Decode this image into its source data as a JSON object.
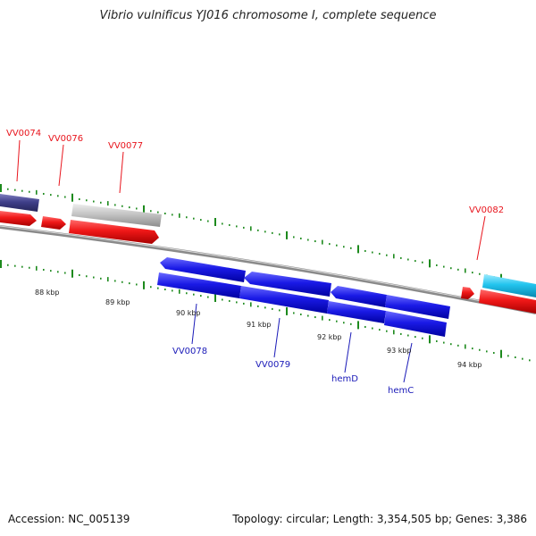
{
  "title": "Vibrio vulnificus YJ016 chromosome I, complete sequence",
  "footer": {
    "accession": "Accession: NC_005139",
    "topology": "Topology: circular; Length: 3,354,505 bp; Genes: 3,386"
  },
  "scale_labels": [
    "88 kbp",
    "89 kbp",
    "90 kbp",
    "91 kbp",
    "92 kbp",
    "93 kbp",
    "94 kbp"
  ],
  "gene_labels": {
    "top": [
      "VV0074",
      "VV0076",
      "VV0077",
      "VV0082"
    ],
    "bottom": [
      "VV0078",
      "VV0079",
      "hemD",
      "hemC"
    ]
  },
  "colors": {
    "forward": "#e8141c",
    "reverse": "#1a1ae6",
    "backbone": "#8a8a8a",
    "tick": "#1d8a1d",
    "grey_feature": "#c4c4c4",
    "navy_feature": "#3f3f8a",
    "cyan_feature": "#22c4ee"
  }
}
